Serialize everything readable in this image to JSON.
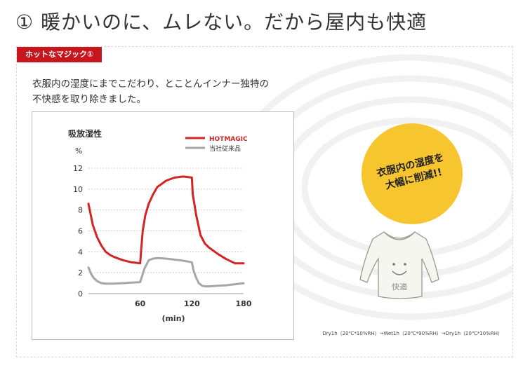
{
  "heading": "① 暖かいのに、ムレない。だから屋内も快適",
  "badge": "ホットなマジック①",
  "intro": {
    "line1": "衣服内の湿度にまでこだわり、とことんインナー独特の",
    "line2": "不快感を取り除きました。"
  },
  "callout": {
    "line1": "衣服内の湿度を",
    "line2": "大幅に削減!!"
  },
  "shirt_label": "快適",
  "footnote": "Dry1h（20℃*10%RH）→Wet1h（20℃*90%RH）→Dry1h（20℃*10%RH）",
  "colors": {
    "accent": "#c8161e",
    "hotmagic": "#d42323",
    "conventional": "#a6a6a6",
    "callout": "#f7c62f"
  },
  "chart_data": {
    "type": "line",
    "title": "吸放湿性",
    "ylabel": "%",
    "xlabel": "(min)",
    "xlim": [
      0,
      180
    ],
    "ylim": [
      0,
      12
    ],
    "xticks": [
      60,
      120,
      180
    ],
    "yticks": [
      0,
      2,
      4,
      6,
      8,
      10,
      12
    ],
    "grid": "horizontal dotted",
    "legend_position": "top-right",
    "series": [
      {
        "name": "HOTMAGIC",
        "x": [
          0,
          5,
          10,
          15,
          20,
          25,
          30,
          40,
          50,
          60,
          61,
          63,
          66,
          70,
          75,
          80,
          90,
          100,
          110,
          120,
          121,
          125,
          130,
          135,
          140,
          150,
          160,
          170,
          180
        ],
        "y": [
          8.6,
          6.6,
          5.4,
          4.6,
          4.0,
          3.7,
          3.5,
          3.2,
          3.0,
          2.9,
          4.0,
          6.0,
          7.5,
          8.6,
          9.5,
          10.2,
          10.8,
          11.1,
          11.2,
          11.1,
          9.5,
          7.5,
          5.6,
          4.8,
          4.4,
          3.8,
          3.3,
          2.9,
          2.9
        ]
      },
      {
        "name": "当社従来品",
        "x": [
          0,
          3,
          6,
          10,
          15,
          20,
          30,
          40,
          50,
          60,
          62,
          65,
          70,
          75,
          80,
          90,
          100,
          110,
          120,
          122,
          125,
          128,
          132,
          135,
          140,
          150,
          160,
          170,
          180
        ],
        "y": [
          2.5,
          1.9,
          1.5,
          1.2,
          1.0,
          0.95,
          0.95,
          1.0,
          1.05,
          1.1,
          1.6,
          2.4,
          3.2,
          3.35,
          3.4,
          3.35,
          3.25,
          3.15,
          3.0,
          2.2,
          1.5,
          1.0,
          0.75,
          0.7,
          0.7,
          0.75,
          0.8,
          0.9,
          1.0
        ]
      }
    ]
  }
}
